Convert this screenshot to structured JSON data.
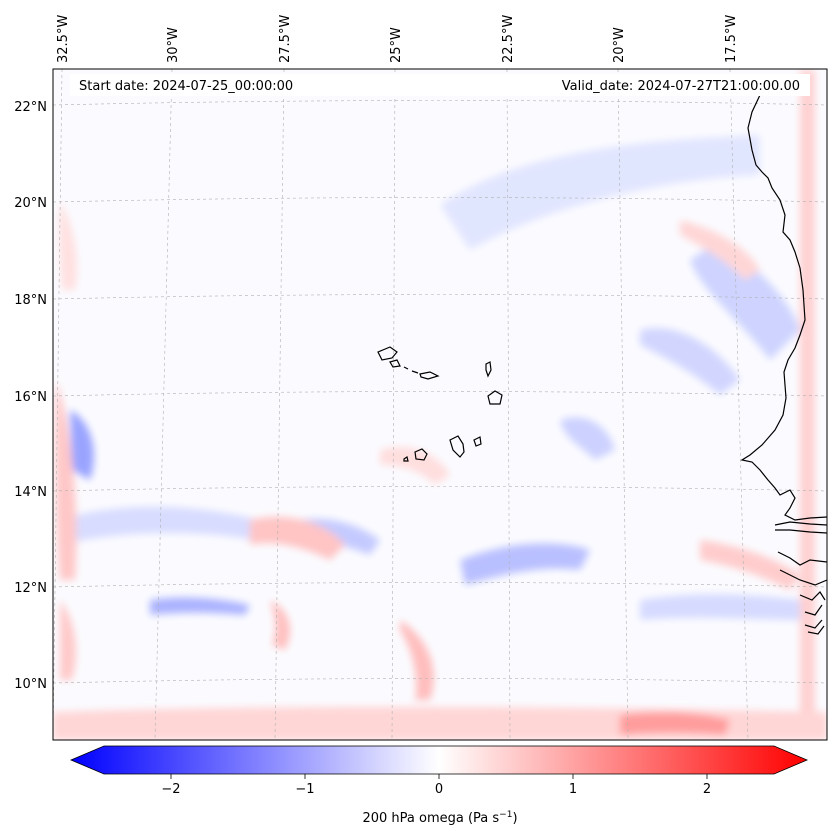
{
  "map": {
    "start_date_label": "Start date: 2024-07-25_00:00:00",
    "valid_date_label": "Valid_date: 2024-07-27T21:00:00.00",
    "lon_labels": [
      "32.5°W",
      "30°W",
      "27.5°W",
      "25°W",
      "22.5°W",
      "20°W",
      "17.5°W"
    ],
    "lat_labels": [
      "22°N",
      "20°N",
      "18°N",
      "16°N",
      "14°N",
      "12°N",
      "10°N"
    ],
    "field": "200 hPa omega"
  },
  "colorbar": {
    "label_main": "200 hPa omega (Pa s",
    "label_sup": "−1",
    "label_close": ")",
    "ticks": [
      "−2",
      "−1",
      "0",
      "1",
      "2"
    ],
    "tick_values": [
      -2,
      -1,
      0,
      1,
      2
    ],
    "range": [
      -2.5,
      2.5
    ],
    "extend": "both",
    "colors": {
      "low": "#0000ff",
      "mid": "#ffffff",
      "high": "#ff0000"
    }
  },
  "colors": {
    "coast": "#000000",
    "grid": "#b0b0b0",
    "frame": "#000000"
  }
}
